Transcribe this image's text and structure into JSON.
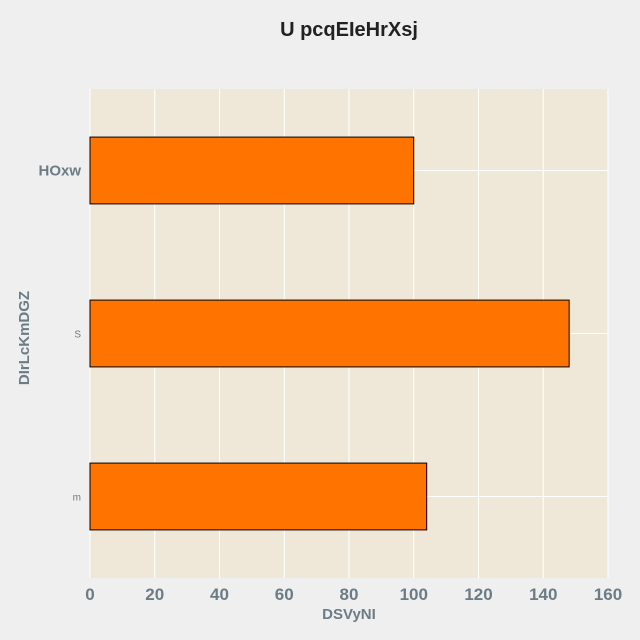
{
  "chart_data": {
    "type": "bar",
    "orientation": "horizontal",
    "title": "U pcqEIeHrXsj",
    "xlabel": "DSVyNI",
    "ylabel": "DIrLcKmDGZ",
    "categories": [
      "HOxw",
      "S",
      "m"
    ],
    "values": [
      100,
      148,
      104
    ],
    "xlim": [
      0,
      160
    ],
    "xticks": [
      "0",
      "20",
      "40",
      "60",
      "80",
      "100",
      "120",
      "140",
      "160"
    ],
    "grid": true,
    "colors": {
      "bar": "#ff7400",
      "bar_edge": "#000000",
      "plot_background": "#efe8d8",
      "grid": "#ffffff",
      "page_background": "#efefef"
    }
  }
}
